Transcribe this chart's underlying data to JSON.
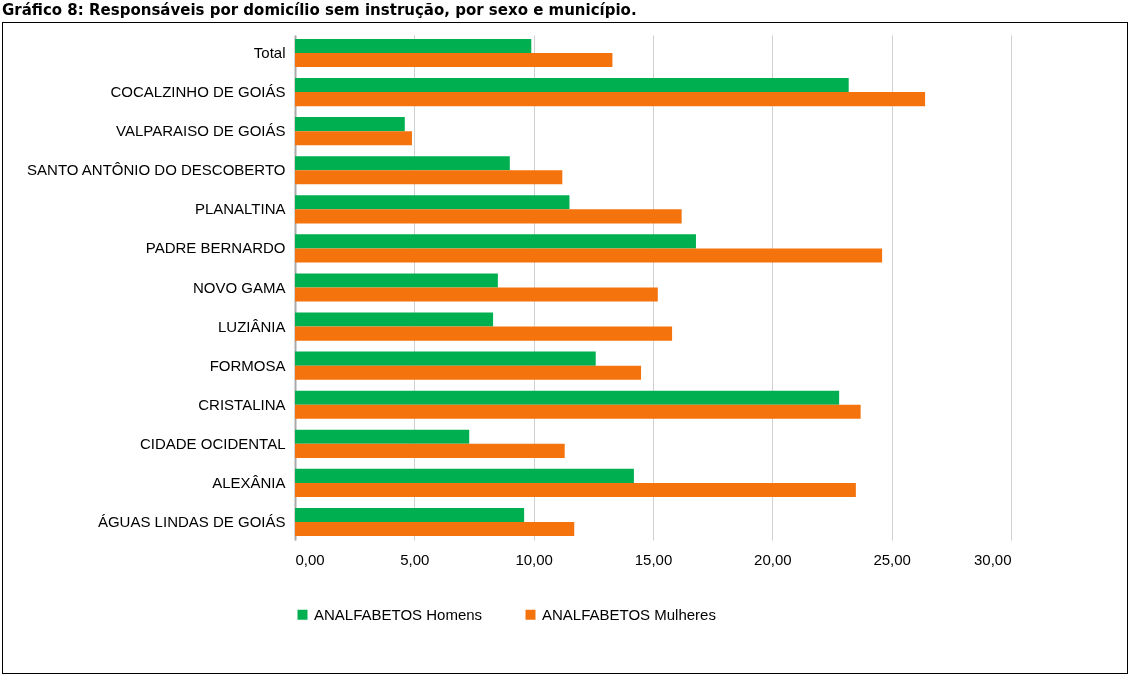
{
  "chart_data": {
    "type": "bar",
    "orientation": "horizontal",
    "title": "Gráfico 8: Responsáveis por domicílio sem instrução, por sexo e município.",
    "categories": [
      "Total",
      "COCALZINHO DE GOIÁS",
      "VALPARAISO DE GOIÁS",
      "SANTO ANTÔNIO DO DESCOBERTO",
      "PLANALTINA",
      "PADRE BERNARDO",
      "NOVO GAMA",
      "LUZIÂNIA",
      "FORMOSA",
      "CRISTALINA",
      "CIDADE OCIDENTAL",
      "ALEXÂNIA",
      "ÁGUAS LINDAS DE GOIÁS"
    ],
    "series": [
      {
        "name": "ANALFABETOS Homens",
        "color": "#00b050",
        "values": [
          9.9,
          23.2,
          4.6,
          9.0,
          11.5,
          16.8,
          8.5,
          8.3,
          12.6,
          22.8,
          7.3,
          14.2,
          9.6
        ]
      },
      {
        "name": "ANALFABETOS Mulheres",
        "color": "#f4730c",
        "values": [
          13.3,
          26.4,
          4.9,
          11.2,
          16.2,
          24.6,
          15.2,
          15.8,
          14.5,
          23.7,
          11.3,
          23.5,
          11.7
        ]
      }
    ],
    "xlim": [
      0,
      30
    ],
    "xticks": [
      {
        "value": 0,
        "label": "0,00"
      },
      {
        "value": 5,
        "label": "5,00"
      },
      {
        "value": 10,
        "label": "10,00"
      },
      {
        "value": 15,
        "label": "15,00"
      },
      {
        "value": 20,
        "label": "20,00"
      },
      {
        "value": 25,
        "label": "25,00"
      },
      {
        "value": 30,
        "label": "30,00"
      }
    ],
    "grid": "x",
    "legend": "bottom"
  }
}
